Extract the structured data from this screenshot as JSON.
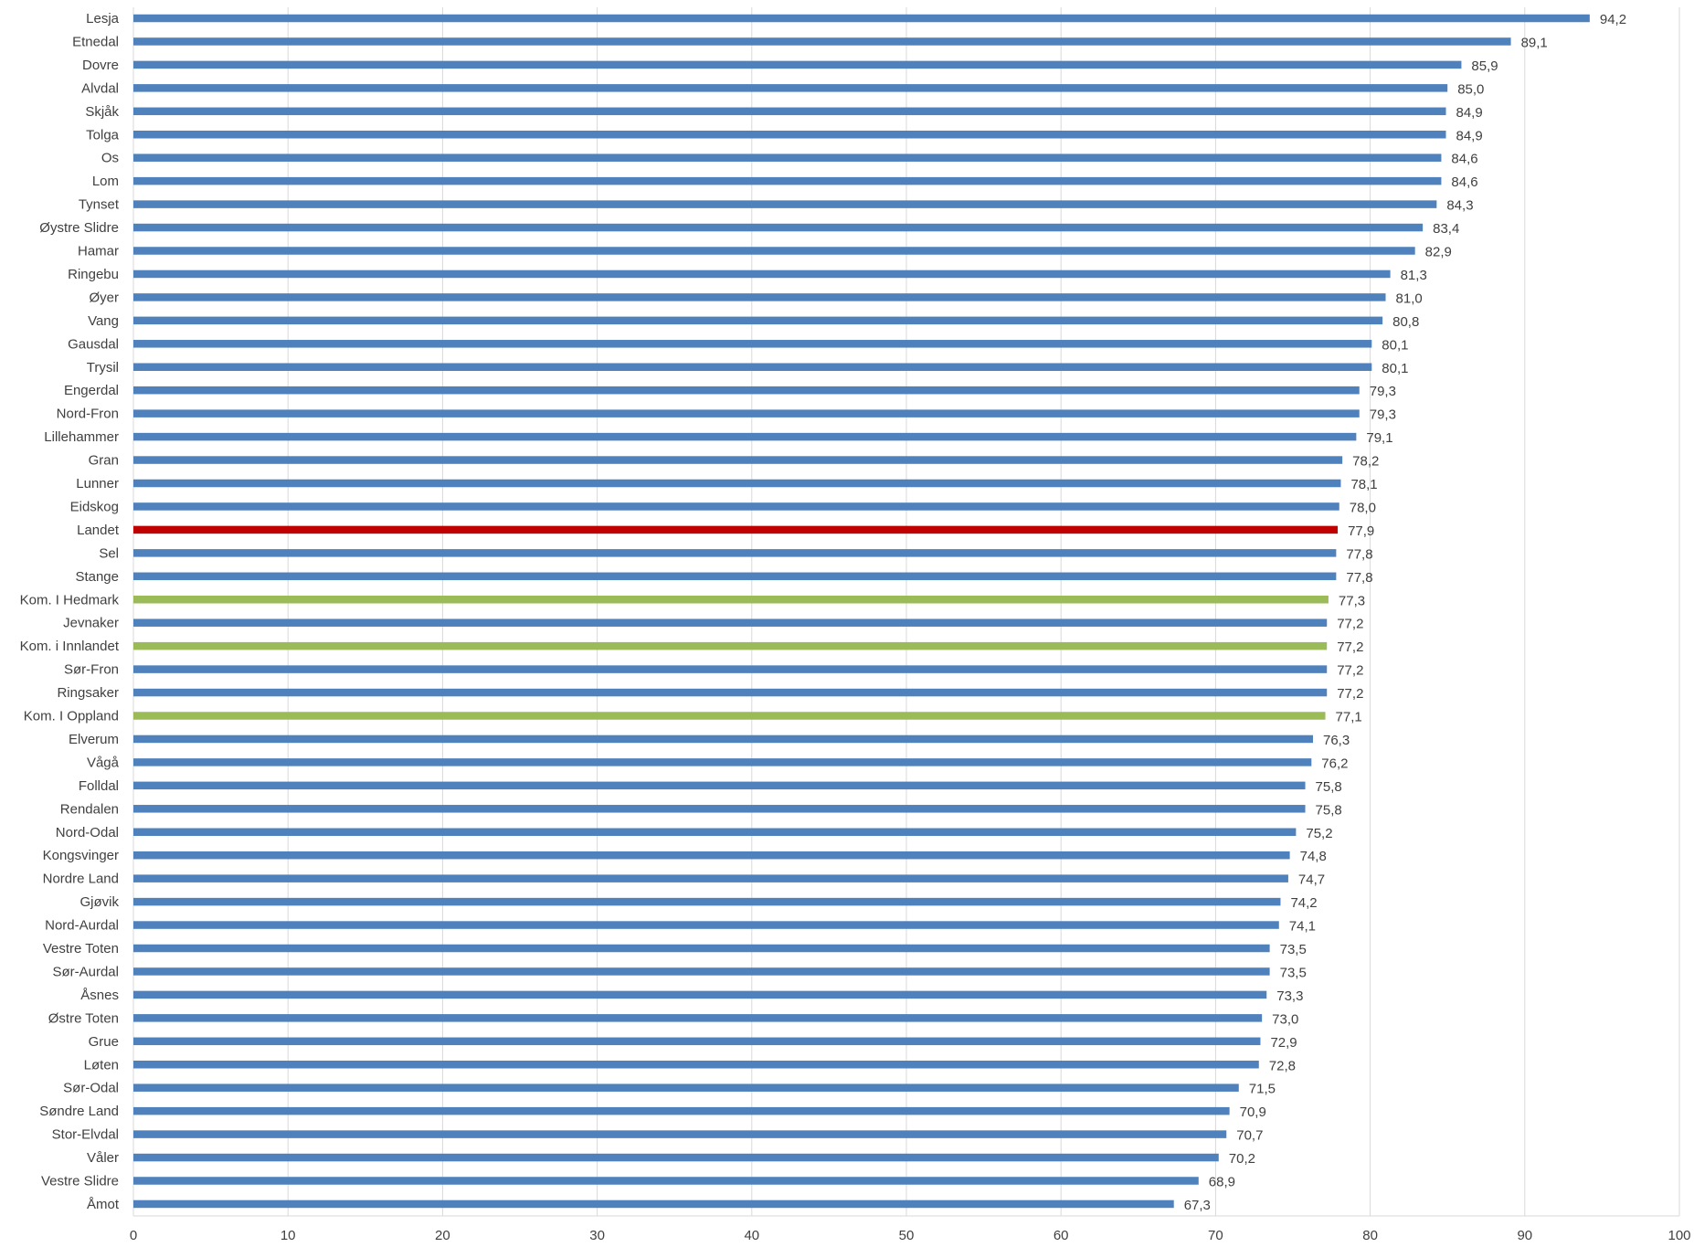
{
  "chart_data": {
    "type": "bar",
    "orientation": "horizontal",
    "xlim": [
      0,
      100
    ],
    "ticks": [
      0,
      10,
      20,
      30,
      40,
      50,
      60,
      70,
      80,
      90,
      100
    ],
    "grid": "vertical",
    "legend": "none",
    "colors": {
      "default": "#4f81bd",
      "highlight_country": "#c00000",
      "highlight_county": "#9bbb59",
      "grid": "#d9d9d9",
      "text": "#404040"
    },
    "categories": [
      "Lesja",
      "Etnedal",
      "Dovre",
      "Alvdal",
      "Skjåk",
      "Tolga",
      "Os",
      "Lom",
      "Tynset",
      "Øystre Slidre",
      "Hamar",
      "Ringebu",
      "Øyer",
      "Vang",
      "Gausdal",
      "Trysil",
      "Engerdal",
      "Nord-Fron",
      "Lillehammer",
      "Gran",
      "Lunner",
      "Eidskog",
      "Landet",
      "Sel",
      "Stange",
      "Kom. I Hedmark",
      "Jevnaker",
      "Kom. i Innlandet",
      "Sør-Fron",
      "Ringsaker",
      "Kom. I Oppland",
      "Elverum",
      "Vågå",
      "Folldal",
      "Rendalen",
      "Nord-Odal",
      "Kongsvinger",
      "Nordre Land",
      "Gjøvik",
      "Nord-Aurdal",
      "Vestre Toten",
      "Sør-Aurdal",
      "Åsnes",
      "Østre Toten",
      "Grue",
      "Løten",
      "Sør-Odal",
      "Søndre Land",
      "Stor-Elvdal",
      "Våler",
      "Vestre Slidre",
      "Åmot"
    ],
    "values": [
      94.2,
      89.1,
      85.9,
      85.0,
      84.9,
      84.9,
      84.6,
      84.6,
      84.3,
      83.4,
      82.9,
      81.3,
      81.0,
      80.8,
      80.1,
      80.1,
      79.3,
      79.3,
      79.1,
      78.2,
      78.1,
      78.0,
      77.9,
      77.8,
      77.8,
      77.3,
      77.2,
      77.2,
      77.2,
      77.2,
      77.1,
      76.3,
      76.2,
      75.8,
      75.8,
      75.2,
      74.8,
      74.7,
      74.2,
      74.1,
      73.5,
      73.5,
      73.3,
      73.0,
      72.9,
      72.8,
      71.5,
      70.9,
      70.7,
      70.2,
      68.9,
      67.3
    ],
    "value_labels": [
      "94,2",
      "89,1",
      "85,9",
      "85,0",
      "84,9",
      "84,9",
      "84,6",
      "84,6",
      "84,3",
      "83,4",
      "82,9",
      "81,3",
      "81,0",
      "80,8",
      "80,1",
      "80,1",
      "79,3",
      "79,3",
      "79,1",
      "78,2",
      "78,1",
      "78,0",
      "77,9",
      "77,8",
      "77,8",
      "77,3",
      "77,2",
      "77,2",
      "77,2",
      "77,2",
      "77,1",
      "76,3",
      "76,2",
      "75,8",
      "75,8",
      "75,2",
      "74,8",
      "74,7",
      "74,2",
      "74,1",
      "73,5",
      "73,5",
      "73,3",
      "73,0",
      "72,9",
      "72,8",
      "71,5",
      "70,9",
      "70,7",
      "70,2",
      "68,9",
      "67,3"
    ],
    "highlights": {
      "Landet": "highlight_country",
      "Kom. I Hedmark": "highlight_county",
      "Kom. i Innlandet": "highlight_county",
      "Kom. I Oppland": "highlight_county"
    }
  }
}
